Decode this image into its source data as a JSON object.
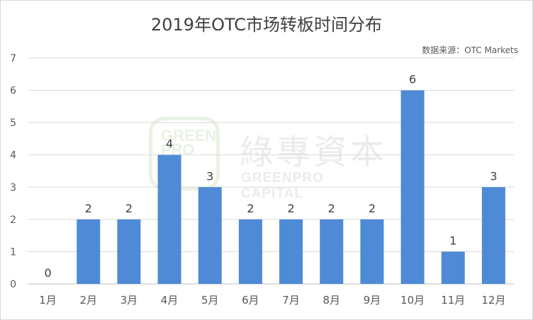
{
  "chart_data": {
    "type": "bar",
    "title": "2019年OTC市场转板时间分布",
    "source_note": "数据来源：OTC Markets",
    "categories": [
      "1月",
      "2月",
      "3月",
      "4月",
      "5月",
      "6月",
      "7月",
      "8月",
      "9月",
      "10月",
      "11月",
      "12月"
    ],
    "values": [
      0,
      2,
      2,
      4,
      3,
      2,
      2,
      2,
      2,
      6,
      1,
      3
    ],
    "data_labels": [
      "0",
      "2",
      "2",
      "4",
      "3",
      "2",
      "2",
      "2",
      "2",
      "6",
      "1",
      "3"
    ],
    "y_ticks": [
      "0",
      "1",
      "2",
      "3",
      "4",
      "5",
      "6",
      "7"
    ],
    "ylim": [
      0,
      7
    ],
    "xlabel": "",
    "ylabel": "",
    "grid": true,
    "legend": "none",
    "colors": {
      "bar": "#4f8ad6",
      "grid": "#d9d9d9",
      "axis": "#bfbfbf",
      "tick_text": "#595959",
      "label_text": "#404040"
    }
  },
  "watermark": {
    "logo_text": "GREEN PRO",
    "chinese": "綠專資本",
    "english": "GREENPRO CAPITAL"
  }
}
